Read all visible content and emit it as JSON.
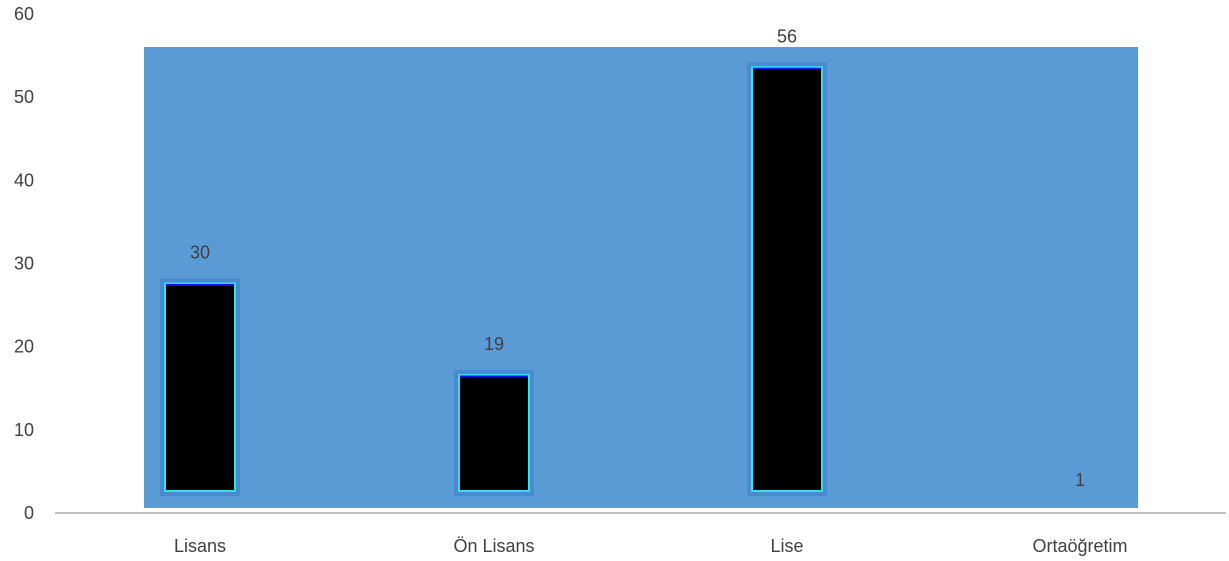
{
  "colors": {
    "plot_background": "#5b9bd5",
    "bar_fill": "#000000",
    "bar_outline": "#33e0ee",
    "bar_top_edge": "#1010ee",
    "axis_line": "#bfbfbf",
    "text": "#404040"
  },
  "chart_data": {
    "type": "bar",
    "title": "",
    "xlabel": "",
    "ylabel": "",
    "categories": [
      "Lisans",
      "Ön Lisans",
      "Lise",
      "Ortaöğretim"
    ],
    "values": [
      30,
      19,
      56,
      1
    ],
    "data_labels": [
      "30",
      "19",
      "56",
      "1"
    ],
    "ylim": [
      0,
      60
    ],
    "yticks": [
      0,
      10,
      20,
      30,
      40,
      50,
      60
    ],
    "grid": false,
    "legend": "none"
  }
}
